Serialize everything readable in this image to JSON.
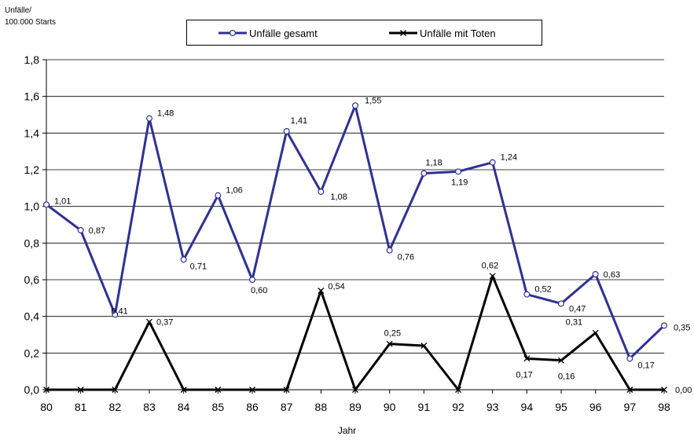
{
  "chart_data": {
    "type": "line",
    "ylabel_line1": "Unfälle/",
    "ylabel_line2": "100.000 Starts",
    "xlabel": "Jahr",
    "categories": [
      "80",
      "81",
      "82",
      "83",
      "84",
      "85",
      "86",
      "87",
      "88",
      "89",
      "90",
      "91",
      "92",
      "93",
      "94",
      "95",
      "96",
      "97",
      "98"
    ],
    "ylim": [
      0,
      1.8
    ],
    "yticks": [
      "0,0",
      "0,2",
      "0,4",
      "0,6",
      "0,8",
      "1,0",
      "1,2",
      "1,4",
      "1,6",
      "1,8"
    ],
    "grid": "horizontal",
    "legend_position": "top",
    "series": [
      {
        "name": "Unfälle gesamt",
        "color": "#2e3192",
        "marker": "circle",
        "values": [
          1.01,
          0.87,
          0.41,
          1.48,
          0.71,
          1.06,
          0.6,
          1.41,
          1.08,
          1.55,
          0.76,
          1.18,
          1.19,
          1.24,
          0.52,
          0.47,
          0.63,
          0.17,
          0.35
        ],
        "labels": [
          "1,01",
          "0,87",
          "0,41",
          "1,48",
          "0,71",
          "1,06",
          "0,60",
          "1,41",
          "1,08",
          "1,55",
          "0,76",
          "1,18",
          "1,19",
          "1,24",
          "0,52",
          "0,47",
          "0,63",
          "0,17",
          "0,35"
        ]
      },
      {
        "name": "Unfälle mit Toten",
        "color": "#000000",
        "marker": "x",
        "values": [
          0,
          0,
          0,
          0.37,
          0,
          0,
          0,
          0,
          0.54,
          0,
          0.25,
          0.24,
          0,
          0.62,
          0.17,
          0.16,
          0.31,
          0,
          0
        ],
        "labels": [
          "",
          "",
          "",
          "0,37",
          "",
          "",
          "",
          "",
          "0,54",
          "",
          "0,25",
          "",
          "",
          "0,62",
          "0,17",
          "0,16",
          "0,31",
          "",
          "0,00"
        ]
      }
    ]
  }
}
